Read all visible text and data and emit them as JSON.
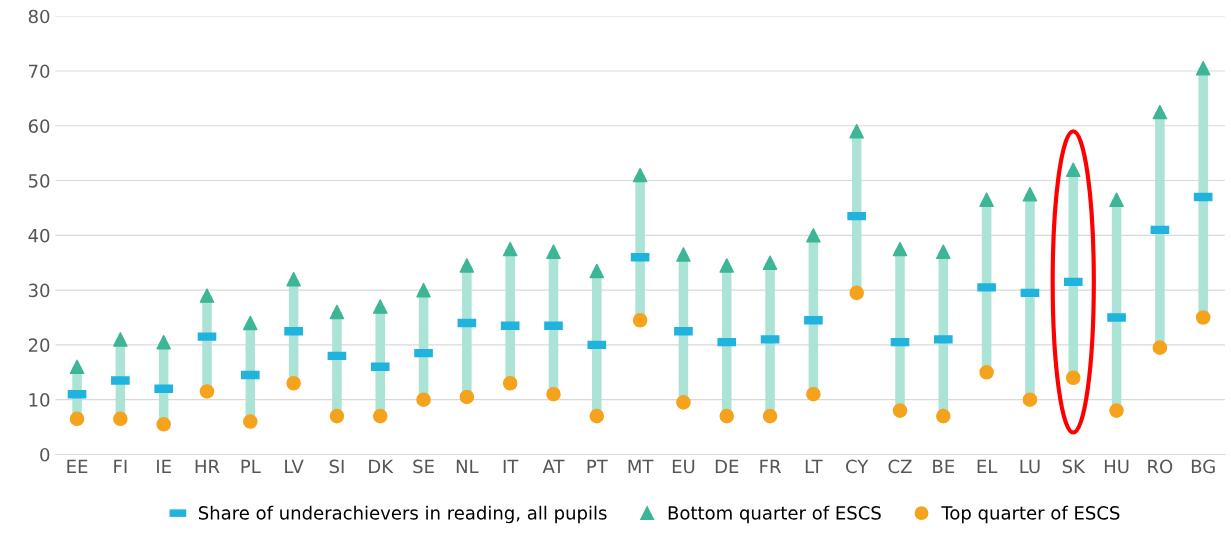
{
  "chart_data": {
    "type": "scatter",
    "categories": [
      "EE",
      "FI",
      "IE",
      "HR",
      "PL",
      "LV",
      "SI",
      "DK",
      "SE",
      "NL",
      "IT",
      "AT",
      "PT",
      "MT",
      "EU",
      "DE",
      "FR",
      "LT",
      "CY",
      "CZ",
      "BE",
      "EL",
      "LU",
      "SK",
      "HU",
      "RO",
      "BG"
    ],
    "series": [
      {
        "type": "bar",
        "color": "#abe3d6",
        "base": [
          6.5,
          6.5,
          5.5,
          11.5,
          6,
          13,
          7,
          7,
          10,
          10.5,
          13,
          11,
          7,
          24.5,
          9.5,
          7,
          7,
          11,
          29.5,
          8,
          7,
          15,
          10,
          14,
          8,
          19.5,
          25
        ],
        "values": [
          9.5,
          14.5,
          15,
          17.5,
          18,
          19,
          19,
          20,
          20,
          24,
          24.5,
          26,
          26.5,
          26.5,
          27,
          27.5,
          28,
          29,
          29.5,
          29.5,
          30,
          31.5,
          37.5,
          38,
          38.5,
          43,
          45.5
        ]
      },
      {
        "name": "Share of underachievers in reading, all pupils",
        "marker": "square",
        "color": "#1fb3dd",
        "values": [
          11,
          13.5,
          12,
          21.5,
          14.5,
          22.5,
          18,
          16,
          18.5,
          24,
          23.5,
          23.5,
          20,
          36,
          22.5,
          20.5,
          21,
          24.5,
          43.5,
          20.5,
          21,
          30.5,
          29.5,
          31.5,
          25,
          41,
          47
        ]
      },
      {
        "name": "Bottom quarter of ESCS",
        "marker": "triangle",
        "color": "#3db597",
        "values": [
          16,
          21,
          20.5,
          29,
          24,
          32,
          26,
          27,
          30,
          34.5,
          37.5,
          37,
          33.5,
          51,
          36.5,
          34.5,
          35,
          40,
          59,
          37.5,
          37,
          46.5,
          47.5,
          52,
          46.5,
          62.5,
          70.5
        ]
      },
      {
        "name": "Top quarter of ESCS",
        "marker": "circle",
        "color": "#f5a31c",
        "values": [
          6.5,
          6.5,
          5.5,
          11.5,
          6,
          13,
          7,
          7,
          10,
          10.5,
          13,
          11,
          7,
          24.5,
          9.5,
          7,
          7,
          11,
          29.5,
          8,
          7,
          15,
          10,
          14,
          8,
          19.5,
          25
        ]
      }
    ],
    "ylim": [
      0,
      80
    ],
    "yticks": [
      0,
      10,
      20,
      30,
      40,
      50,
      60,
      70,
      80
    ],
    "grid": "y",
    "legend": "bottom"
  }
}
